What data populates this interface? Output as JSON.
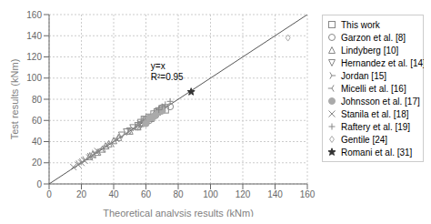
{
  "chart_data": {
    "type": "scatter",
    "xlabel": "Theoretical analysis results (kNm)",
    "ylabel": "Test results (kNm)",
    "xlim": [
      0,
      160
    ],
    "ylim": [
      0,
      160
    ],
    "xticks": [
      0,
      20,
      40,
      60,
      80,
      100,
      120,
      140,
      160
    ],
    "yticks": [
      0,
      20,
      40,
      60,
      80,
      100,
      120,
      140,
      160
    ],
    "grid": true,
    "legend": "right",
    "annotations": [
      {
        "text": "y=x\nR²=0.95",
        "x": 63,
        "y": 96
      }
    ],
    "series": [
      {
        "type": "line",
        "color": "#555555",
        "line_style": "solid",
        "x": [
          0,
          160
        ],
        "values": [
          0,
          160
        ]
      },
      {
        "name": "This work",
        "marker": "square",
        "color": "#888888",
        "x": [
          57,
          59,
          60,
          62,
          63,
          65,
          67,
          68,
          70,
          72
        ],
        "values": [
          58,
          61,
          60,
          63,
          62,
          66,
          68,
          69,
          71,
          70
        ]
      },
      {
        "name": "Garzon et al. [8]",
        "marker": "circle",
        "color": "#888888",
        "x": [
          55,
          58,
          62,
          64,
          66,
          68,
          70,
          75
        ],
        "values": [
          54,
          57,
          60,
          63,
          65,
          69,
          72,
          73
        ]
      },
      {
        "name": "Lindyberg [10]",
        "marker": "triangle_up",
        "color": "#888888",
        "x": [
          25,
          27,
          30,
          33,
          35,
          37,
          40,
          43,
          50,
          55,
          60,
          65
        ],
        "values": [
          26,
          28,
          30,
          33,
          36,
          38,
          41,
          44,
          50,
          54,
          60,
          65
        ]
      },
      {
        "name": "Hernandez et al. [14]",
        "marker": "triangle_down",
        "color": "#888888",
        "x": [
          45,
          48,
          50,
          52,
          55,
          57,
          60
        ],
        "values": [
          46,
          49,
          50,
          53,
          55,
          56,
          59
        ]
      },
      {
        "name": "Jordan [15]",
        "marker": "tri_right",
        "color": "#888888",
        "x": [
          18,
          20,
          22,
          25,
          28
        ],
        "values": [
          19,
          21,
          23,
          26,
          29
        ]
      },
      {
        "name": "Micelli et al. [16]",
        "marker": "tri_left",
        "color": "#888888",
        "x": [
          30,
          33,
          36,
          39,
          42
        ],
        "values": [
          30,
          33,
          36,
          38,
          43
        ]
      },
      {
        "name": "Johnsson et al. [17]",
        "marker": "filled_circle",
        "color": "#aaaaaa",
        "x": [
          60,
          62,
          64,
          66,
          68,
          70
        ],
        "values": [
          57,
          62,
          63,
          65,
          68,
          69
        ]
      },
      {
        "name": "Stanila et al. [18]",
        "marker": "x",
        "color": "#888888",
        "x": [
          15,
          18,
          20,
          22,
          25,
          27,
          30
        ],
        "values": [
          16,
          18,
          20,
          22,
          25,
          27,
          31
        ]
      },
      {
        "name": "Raftery et al. [19]",
        "marker": "plus",
        "color": "#888888",
        "x": [
          68,
          70,
          72,
          75
        ],
        "values": [
          70,
          73,
          75,
          78
        ]
      },
      {
        "name": "Gentile [24]",
        "marker": "diamond",
        "color": "#aaaaaa",
        "x": [
          148
        ],
        "values": [
          138
        ]
      },
      {
        "name": "Romani et al. [31]",
        "marker": "filled_star",
        "color": "#333333",
        "x": [
          88
        ],
        "values": [
          87
        ]
      }
    ]
  }
}
